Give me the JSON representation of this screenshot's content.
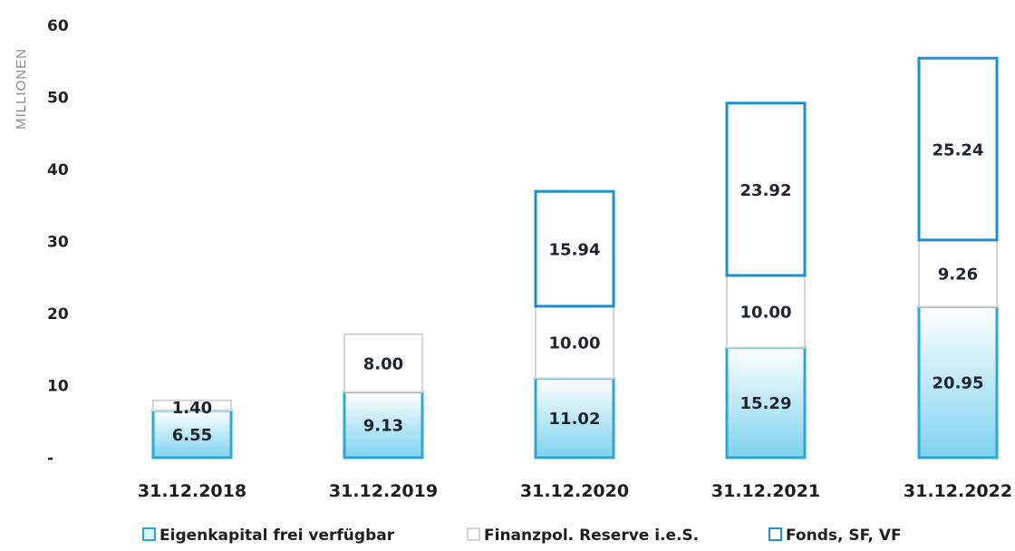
{
  "chart_data": {
    "type": "bar",
    "stacked": true,
    "title": "",
    "xlabel": "",
    "ylabel": "MILLIONEN",
    "ylim": [
      0,
      60
    ],
    "yticks": [
      0,
      10,
      20,
      30,
      40,
      50,
      60
    ],
    "ytick_labels": [
      "-",
      "10",
      "20",
      "30",
      "40",
      "50",
      "60"
    ],
    "categories": [
      "31.12.2018",
      "31.12.2019",
      "31.12.2020",
      "31.12.2021",
      "31.12.2022"
    ],
    "series": [
      {
        "name": "Eigenkapital frei verfügbar",
        "values": [
          6.55,
          9.13,
          11.02,
          15.29,
          20.95
        ],
        "labels": [
          "6.55",
          "9.13",
          "11.02",
          "15.29",
          "20.95"
        ]
      },
      {
        "name": "Finanzpol. Reserve i.e.S.",
        "values": [
          1.4,
          8.0,
          10.0,
          10.0,
          9.26
        ],
        "labels": [
          "1.40",
          "8.00",
          "10.00",
          "10.00",
          "9.26"
        ]
      },
      {
        "name": "Fonds, SF, VF",
        "values": [
          0,
          0,
          15.94,
          23.92,
          25.24
        ],
        "labels": [
          "",
          "",
          "15.94",
          "23.92",
          "25.24"
        ]
      }
    ],
    "grid": false,
    "legend_position": "bottom",
    "colors": {
      "eigenkapital_fill_top": "#ffffff",
      "eigenkapital_fill_bottom": "#7fd3ef",
      "eigenkapital_border": "#2aa8db",
      "reserve_fill": "#ffffff",
      "reserve_border": "#d4d4d4",
      "fonds_fill": "#ffffff",
      "fonds_border": "#1b8fd0",
      "text": "#1f2430"
    }
  }
}
